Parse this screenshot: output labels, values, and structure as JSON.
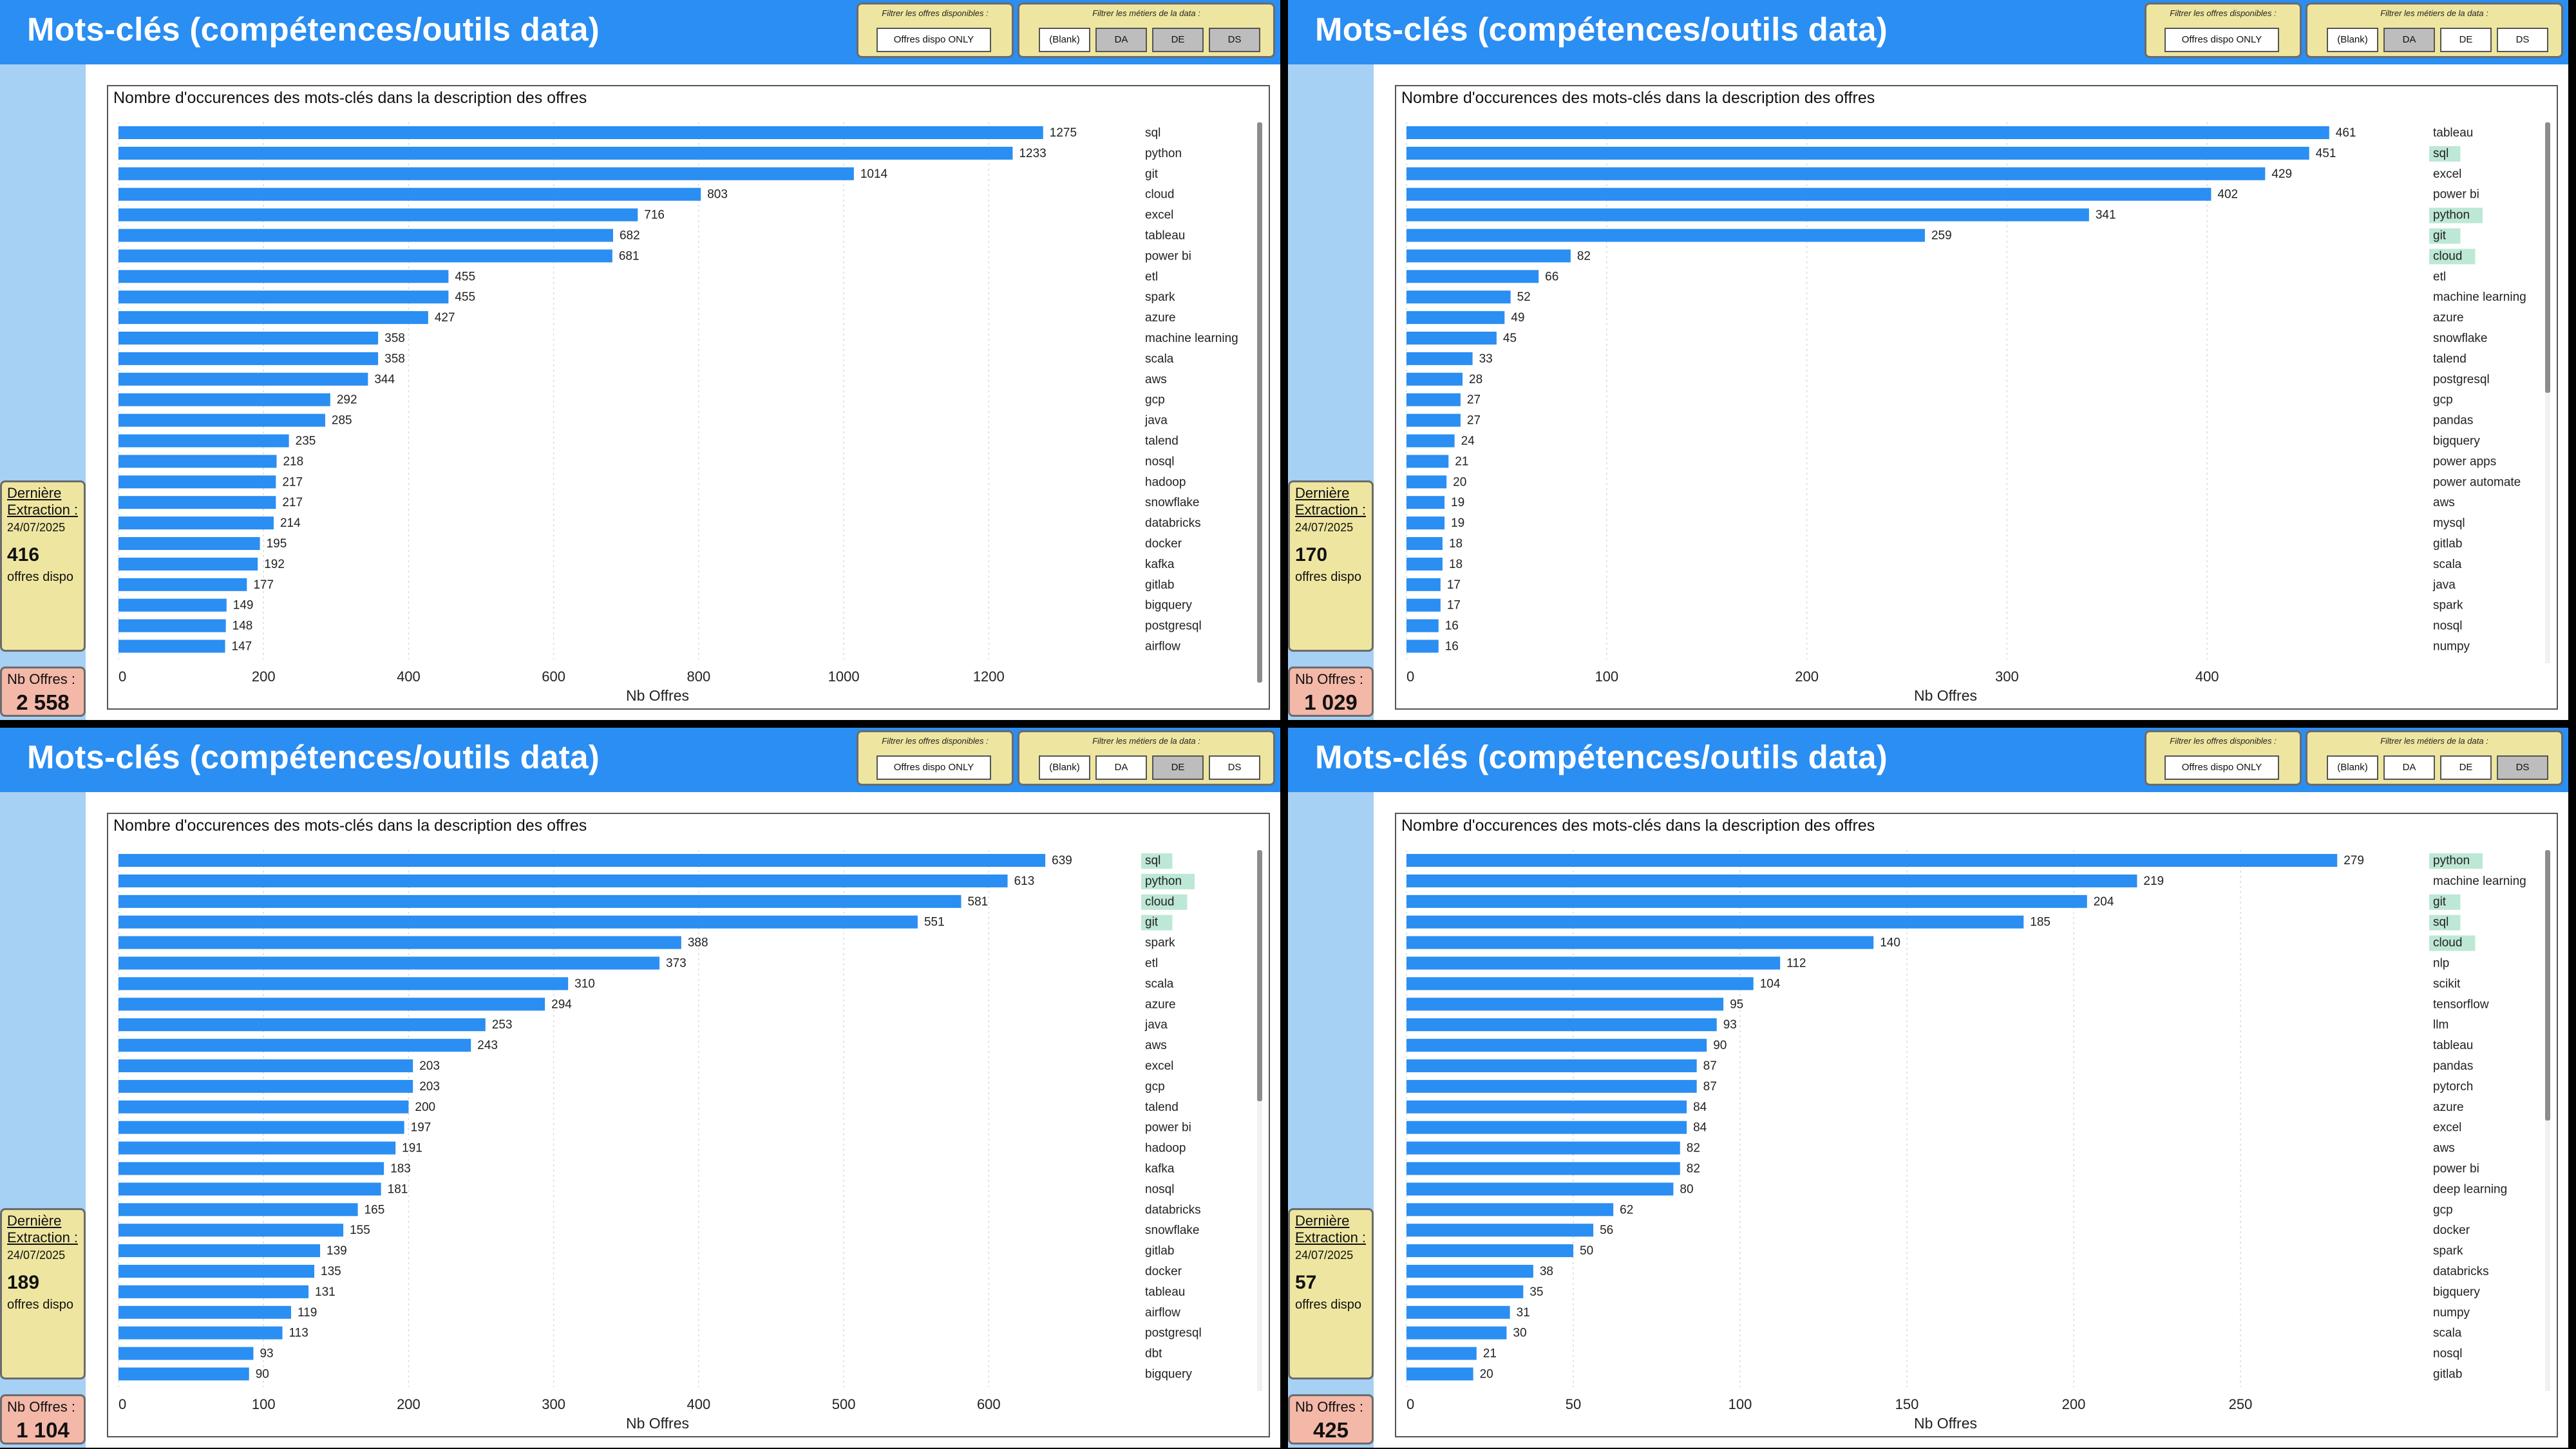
{
  "panels": [
    {
      "title": "Mots-clés (compétences/outils data)",
      "filter_dispo_label": "Filtrer les offres disponibles :",
      "filter_dispo_value": "Offres dispo ONLY",
      "filter_metier_label": "Filtrer les métiers de la data :",
      "metier_options": [
        "(Blank)",
        "DA",
        "DE",
        "DS"
      ],
      "metier_active": [
        false,
        true,
        true,
        true
      ],
      "info_title": "Dernière Extraction :",
      "info_date": "24/07/2025",
      "info_count": "416",
      "info_unit": "offres dispo",
      "nb_label": "Nb Offres :",
      "nb_value": "2 558",
      "chart_data": {
        "type": "bar",
        "orientation": "horizontal",
        "title": "Nombre d'occurences des mots-clés dans la description des offres",
        "xlabel": "Nb Offres",
        "categories": [
          "sql",
          "python",
          "git",
          "cloud",
          "excel",
          "tableau",
          "power bi",
          "etl",
          "spark",
          "azure",
          "machine learning",
          "scala",
          "aws",
          "gcp",
          "java",
          "talend",
          "nosql",
          "hadoop",
          "snowflake",
          "databricks",
          "docker",
          "kafka",
          "gitlab",
          "bigquery",
          "postgresql",
          "airflow"
        ],
        "values": [
          1275,
          1233,
          1014,
          803,
          716,
          682,
          681,
          455,
          455,
          427,
          358,
          358,
          344,
          292,
          285,
          235,
          218,
          217,
          217,
          214,
          195,
          192,
          177,
          149,
          148,
          147
        ],
        "xlim": [
          0,
          1380
        ],
        "xticks": [
          0,
          200,
          400,
          600,
          800,
          1000,
          1200
        ],
        "highlighted": [],
        "bar_color": "#2a8ef2",
        "highlight_color": "#bde8d5"
      }
    },
    {
      "title": "Mots-clés (compétences/outils data)",
      "filter_dispo_label": "Filtrer les offres disponibles :",
      "filter_dispo_value": "Offres dispo ONLY",
      "filter_metier_label": "Filtrer les métiers de la data :",
      "metier_options": [
        "(Blank)",
        "DA",
        "DE",
        "DS"
      ],
      "metier_active": [
        false,
        true,
        false,
        false
      ],
      "info_title": "Dernière Extraction :",
      "info_date": "24/07/2025",
      "info_count": "170",
      "info_unit": "offres dispo",
      "nb_label": "Nb Offres :",
      "nb_value": "1 029",
      "chart_data": {
        "type": "bar",
        "orientation": "horizontal",
        "title": "Nombre d'occurences des mots-clés dans la description des offres",
        "xlabel": "Nb Offres",
        "categories": [
          "tableau",
          "sql",
          "excel",
          "power bi",
          "python",
          "git",
          "cloud",
          "etl",
          "machine learning",
          "azure",
          "snowflake",
          "talend",
          "postgresql",
          "gcp",
          "pandas",
          "bigquery",
          "power apps",
          "power automate",
          "aws",
          "mysql",
          "gitlab",
          "scala",
          "java",
          "spark",
          "nosql",
          "numpy"
        ],
        "values": [
          461,
          451,
          429,
          402,
          341,
          259,
          82,
          66,
          52,
          49,
          45,
          33,
          28,
          27,
          27,
          24,
          21,
          20,
          19,
          19,
          18,
          18,
          17,
          17,
          16,
          16
        ],
        "xlim": [
          0,
          500
        ],
        "xticks": [
          0,
          100,
          200,
          300,
          400
        ],
        "highlighted": [
          "sql",
          "python",
          "git",
          "cloud"
        ],
        "bar_color": "#2a8ef2",
        "highlight_color": "#bde8d5"
      }
    },
    {
      "title": "Mots-clés (compétences/outils data)",
      "filter_dispo_label": "Filtrer les offres disponibles :",
      "filter_dispo_value": "Offres dispo ONLY",
      "filter_metier_label": "Filtrer les métiers de la data :",
      "metier_options": [
        "(Blank)",
        "DA",
        "DE",
        "DS"
      ],
      "metier_active": [
        false,
        false,
        true,
        false
      ],
      "info_title": "Dernière Extraction :",
      "info_date": "24/07/2025",
      "info_count": "189",
      "info_unit": "offres dispo",
      "nb_label": "Nb Offres :",
      "nb_value": "1 104",
      "chart_data": {
        "type": "bar",
        "orientation": "horizontal",
        "title": "Nombre d'occurences des mots-clés dans la description des offres",
        "xlabel": "Nb Offres",
        "categories": [
          "sql",
          "python",
          "cloud",
          "git",
          "spark",
          "etl",
          "scala",
          "azure",
          "java",
          "aws",
          "excel",
          "gcp",
          "talend",
          "power bi",
          "hadoop",
          "kafka",
          "nosql",
          "databricks",
          "snowflake",
          "gitlab",
          "docker",
          "tableau",
          "airflow",
          "postgresql",
          "dbt",
          "bigquery"
        ],
        "values": [
          639,
          613,
          581,
          551,
          388,
          373,
          310,
          294,
          253,
          243,
          203,
          203,
          200,
          197,
          191,
          183,
          181,
          165,
          155,
          139,
          135,
          131,
          119,
          113,
          93,
          90
        ],
        "xlim": [
          0,
          690
        ],
        "xticks": [
          0,
          100,
          200,
          300,
          400,
          500,
          600
        ],
        "highlighted": [
          "sql",
          "python",
          "cloud",
          "git"
        ],
        "bar_color": "#2a8ef2",
        "highlight_color": "#bde8d5"
      }
    },
    {
      "title": "Mots-clés (compétences/outils data)",
      "filter_dispo_label": "Filtrer les offres disponibles :",
      "filter_dispo_value": "Offres dispo ONLY",
      "filter_metier_label": "Filtrer les métiers de la data :",
      "metier_options": [
        "(Blank)",
        "DA",
        "DE",
        "DS"
      ],
      "metier_active": [
        false,
        false,
        false,
        true
      ],
      "info_title": "Dernière Extraction :",
      "info_date": "24/07/2025",
      "info_count": "57",
      "info_unit": "offres dispo",
      "nb_label": "Nb Offres :",
      "nb_value": "425",
      "chart_data": {
        "type": "bar",
        "orientation": "horizontal",
        "title": "Nombre d'occurences des mots-clés dans la description des offres",
        "xlabel": "Nb Offres",
        "categories": [
          "python",
          "machine learning",
          "git",
          "sql",
          "cloud",
          "nlp",
          "scikit",
          "tensorflow",
          "llm",
          "tableau",
          "pandas",
          "pytorch",
          "azure",
          "excel",
          "aws",
          "power bi",
          "deep learning",
          "gcp",
          "docker",
          "spark",
          "databricks",
          "bigquery",
          "numpy",
          "scala",
          "nosql",
          "gitlab"
        ],
        "values": [
          279,
          219,
          204,
          185,
          140,
          112,
          104,
          95,
          93,
          90,
          87,
          87,
          84,
          84,
          82,
          82,
          80,
          62,
          56,
          50,
          38,
          35,
          31,
          30,
          21,
          20
        ],
        "xlim": [
          0,
          300
        ],
        "xticks": [
          0,
          50,
          100,
          150,
          200,
          250
        ],
        "highlighted": [
          "python",
          "git",
          "sql",
          "cloud"
        ],
        "bar_color": "#2a8ef2",
        "highlight_color": "#bde8d5"
      }
    }
  ]
}
